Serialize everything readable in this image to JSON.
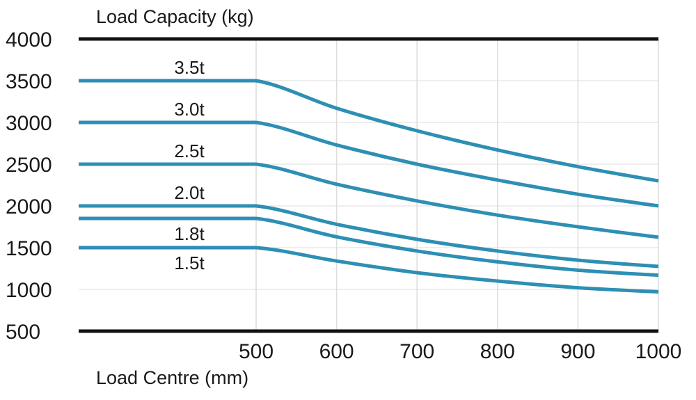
{
  "chart_data": {
    "type": "line",
    "title": "",
    "ylabel": "Load Capacity (kg)",
    "xlabel": "Load Centre (mm)",
    "ylim": [
      500,
      4000
    ],
    "xlim": [
      500,
      1000
    ],
    "yticks": [
      "4000",
      "3500",
      "3000",
      "2500",
      "2000",
      "1500",
      "1000",
      "500"
    ],
    "xticks": [
      "500",
      "600",
      "700",
      "800",
      "900",
      "1000"
    ],
    "grid": true,
    "x": [
      500,
      600,
      700,
      800,
      900,
      1000
    ],
    "series": [
      {
        "name": "3.5t",
        "values": [
          3500,
          3170,
          2900,
          2670,
          2470,
          2300
        ]
      },
      {
        "name": "3.0t",
        "values": [
          3000,
          2730,
          2500,
          2310,
          2140,
          2000
        ]
      },
      {
        "name": "2.5t",
        "values": [
          2500,
          2260,
          2060,
          1890,
          1750,
          1625
        ]
      },
      {
        "name": "2.0t",
        "values": [
          2000,
          1780,
          1600,
          1460,
          1350,
          1275
        ]
      },
      {
        "name": "1.8t",
        "values": [
          1850,
          1630,
          1460,
          1330,
          1230,
          1170
        ]
      },
      {
        "name": "1.5t",
        "values": [
          1500,
          1340,
          1200,
          1100,
          1020,
          970
        ]
      }
    ],
    "line_color": "#2e8fb4"
  }
}
